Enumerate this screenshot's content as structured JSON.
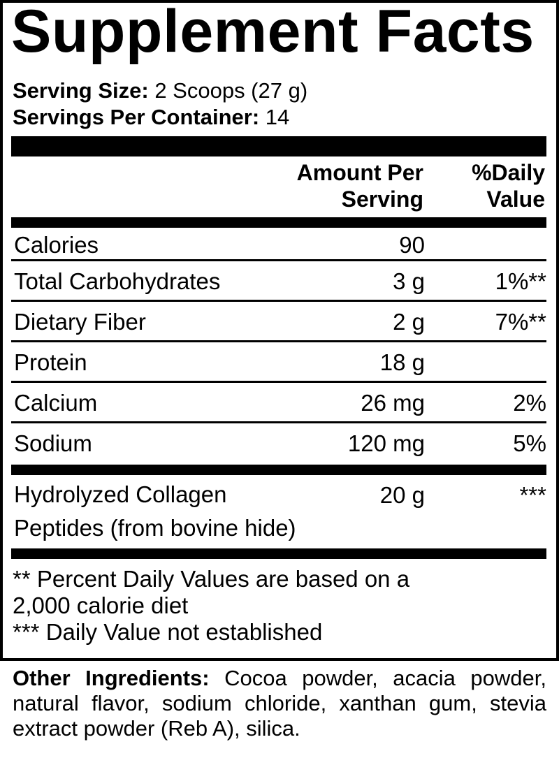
{
  "title": "Supplement Facts",
  "serving_size": {
    "label": "Serving Size:",
    "value": "2 Scoops (27 g)"
  },
  "servings_per_container": {
    "label": "Servings Per Container:",
    "value": "14"
  },
  "header": {
    "amount_line1": "Amount Per",
    "amount_line2": "Serving",
    "dv_line1": "%Daily",
    "dv_line2": "Value"
  },
  "rows": [
    {
      "name": "Calories",
      "amount": "90",
      "dv": ""
    },
    {
      "name": "Total Carbohydrates",
      "amount": "3 g",
      "dv": "1%**"
    },
    {
      "name": "Dietary Fiber",
      "amount": "2 g",
      "dv": "7%**"
    },
    {
      "name": "Protein",
      "amount": "18 g",
      "dv": ""
    },
    {
      "name": "Calcium",
      "amount": "26 mg",
      "dv": "2%"
    },
    {
      "name": "Sodium",
      "amount": "120 mg",
      "dv": "5%"
    }
  ],
  "collagen": {
    "name_line1": "Hydrolyzed Collagen",
    "name_line2": "Peptides (from bovine hide)",
    "amount": "20 g",
    "dv": "***"
  },
  "footnotes": {
    "line1": "** Percent Daily Values are based on a",
    "line2": "2,000 calorie diet",
    "line3": "*** Daily Value not established"
  },
  "other_ingredients": {
    "label": "Other Ingredients:",
    "text": "Cocoa powder, acacia powder, natural flavor, sodium chloride, xanthan gum, stevia extract powder (Reb A), silica."
  }
}
